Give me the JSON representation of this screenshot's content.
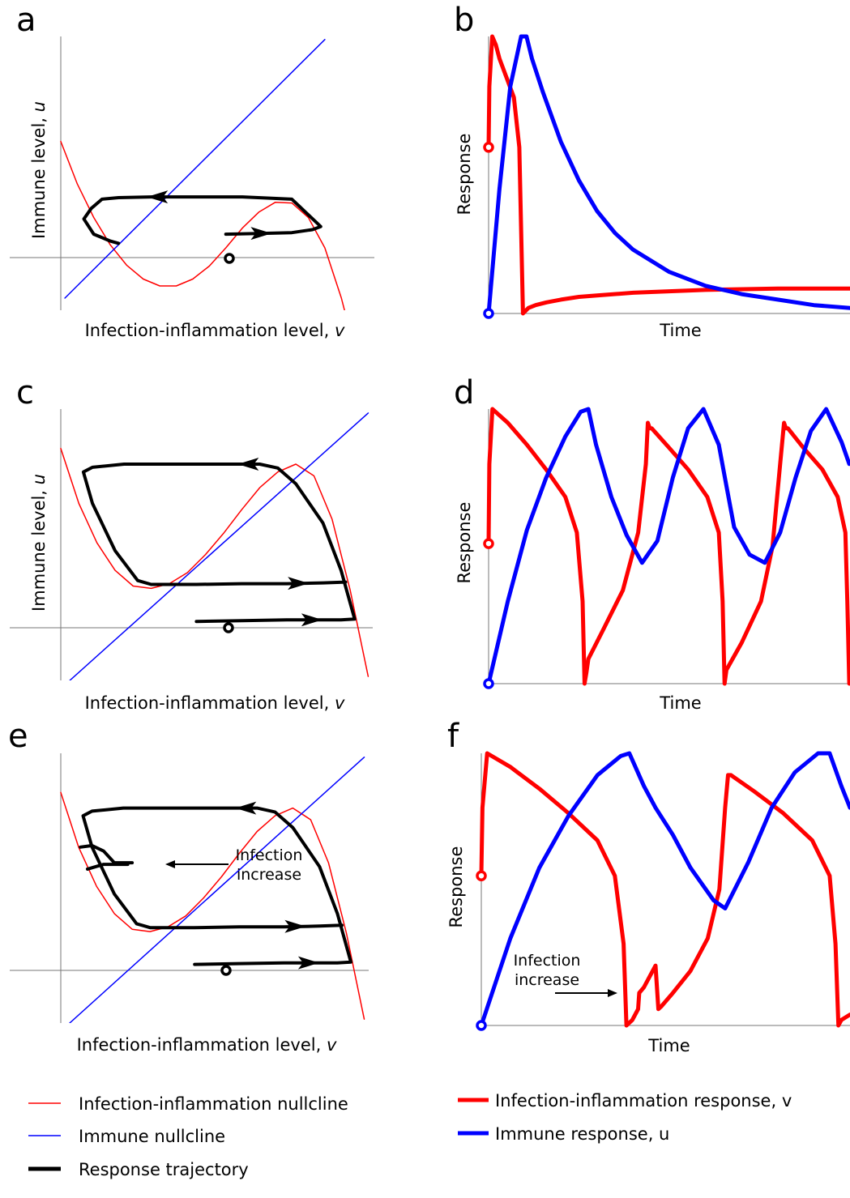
{
  "colors": {
    "infection": "#ff0000",
    "immune": "#0000ff",
    "trajectory": "#000000",
    "axis": "#777777"
  },
  "chart_data": [
    {
      "panel": "a",
      "type": "line",
      "xlabel_prefix": "Infection-inflammation level, ",
      "xlabel_symbol": "v",
      "ylabel_prefix": "Immune level, ",
      "ylabel_symbol": "u",
      "series": [
        {
          "x": [
            -1.6,
            -1.4,
            -1.2,
            -1.0,
            -0.8,
            -0.6,
            -0.4,
            -0.2,
            0,
            0.2,
            0.4,
            0.6,
            0.8,
            1.0,
            1.2,
            1.4,
            1.6,
            1.8,
            2.0
          ],
          "y": [
            1.22,
            0.66,
            0.22,
            -0.14,
            -0.41,
            -0.59,
            -0.68,
            -0.68,
            -0.59,
            -0.42,
            -0.18,
            0.08,
            0.29,
            0.42,
            0.41,
            0.22,
            -0.18,
            -0.84,
            -1.68
          ]
        },
        {
          "x": [
            -1.55,
            1.6
          ],
          "y": [
            -0.84,
            2.56
          ]
        },
        {
          "x": [
            0.4,
            0.8,
            1.2,
            1.45,
            1.55,
            1.2,
            0.6,
            0,
            -0.5,
            -0.9,
            -1.1,
            -1.23,
            -1.32,
            -1.2,
            -1.0,
            -0.9
          ],
          "y": [
            0.0,
            0.01,
            0.02,
            0.06,
            0.1,
            0.46,
            0.49,
            0.49,
            0.49,
            0.48,
            0.46,
            0.34,
            0.2,
            0.0,
            -0.09,
            -0.12
          ]
        }
      ]
    },
    {
      "panel": "b",
      "type": "line",
      "xlabel": "Time",
      "ylabel": "Response",
      "series": [
        {
          "x": [
            0,
            0.02,
            0.1,
            0.2,
            0.3,
            0.5,
            0.7,
            0.85,
            0.95,
            1.1,
            1.3,
            1.6,
            2,
            2.5,
            3,
            4,
            5,
            6,
            8,
            10
          ],
          "y": [
            0.6,
            0.82,
            1.0,
            0.97,
            0.92,
            0.85,
            0.78,
            0.6,
            0.0,
            0.02,
            0.03,
            0.04,
            0.05,
            0.06,
            0.065,
            0.075,
            0.08,
            0.085,
            0.09,
            0.09
          ]
        },
        {
          "x": [
            0,
            0.3,
            0.6,
            0.9,
            1.05,
            1.2,
            1.5,
            2,
            2.5,
            3,
            3.5,
            4,
            5,
            6,
            7,
            8,
            9,
            10
          ],
          "y": [
            0.0,
            0.45,
            0.82,
            1.0,
            1.0,
            0.92,
            0.8,
            0.62,
            0.48,
            0.37,
            0.29,
            0.23,
            0.15,
            0.1,
            0.07,
            0.05,
            0.03,
            0.02
          ]
        }
      ]
    },
    {
      "panel": "c",
      "type": "line",
      "xlabel_prefix": "Infection-inflammation level, ",
      "xlabel_symbol": "v",
      "ylabel_prefix": "Immune level, ",
      "ylabel_symbol": "u",
      "series": [
        {
          "x": [
            -1.2,
            -1.0,
            -0.8,
            -0.6,
            -0.4,
            -0.2,
            0,
            0.2,
            0.4,
            0.6,
            0.8,
            1.0,
            1.2,
            1.4,
            1.6,
            1.8,
            2.0,
            2.2
          ],
          "y": [
            2.2,
            1.5,
            1.0,
            0.65,
            0.45,
            0.42,
            0.48,
            0.62,
            0.85,
            1.12,
            1.42,
            1.7,
            1.9,
            2.0,
            1.85,
            1.3,
            0.4,
            -0.7
          ]
        },
        {
          "x": [
            -1.1,
            2.2
          ],
          "y": [
            -0.75,
            2.65
          ]
        },
        {
          "x": [
            0.3,
            0.8,
            1.3,
            1.6,
            1.9,
            2.05,
            1.9,
            1.7,
            1.4,
            1.2,
            1.0,
            0.6,
            0.0,
            -0.5,
            -0.85,
            -0.95,
            -0.85,
            -0.6,
            -0.35,
            -0.2,
            0.3,
            0.8,
            1.3,
            1.7,
            1.95
          ],
          "y": [
            0.0,
            0.01,
            0.02,
            0.02,
            0.02,
            0.03,
            0.65,
            1.25,
            1.75,
            1.95,
            2.0,
            2.0,
            2.0,
            2.0,
            1.96,
            1.9,
            1.5,
            0.9,
            0.52,
            0.47,
            0.47,
            0.48,
            0.48,
            0.49,
            0.5
          ]
        }
      ]
    },
    {
      "panel": "d",
      "type": "line",
      "xlabel": "Time",
      "ylabel": "Response",
      "series": [
        {
          "x": [
            0,
            0.02,
            0.1,
            0.5,
            1.0,
            1.5,
            2.0,
            2.3,
            2.45,
            2.5,
            2.55,
            2.6,
            3.0,
            3.5,
            3.9,
            4.1,
            4.15,
            4.2,
            4.25,
            4.7,
            5.2,
            5.7,
            6.0,
            6.1,
            6.15,
            6.2,
            6.6,
            7.1,
            7.4,
            7.6,
            7.7,
            7.75,
            7.8,
            8.2,
            8.7,
            9.1,
            9.3,
            9.35,
            9.4,
            9.42
          ],
          "y": [
            0.51,
            0.8,
            1.0,
            0.95,
            0.87,
            0.78,
            0.68,
            0.55,
            0.3,
            0.0,
            0.04,
            0.09,
            0.2,
            0.34,
            0.55,
            0.8,
            0.95,
            0.93,
            0.93,
            0.86,
            0.78,
            0.68,
            0.55,
            0.3,
            0.0,
            0.05,
            0.15,
            0.3,
            0.5,
            0.8,
            0.95,
            0.93,
            0.93,
            0.86,
            0.78,
            0.68,
            0.55,
            0.3,
            0.0,
            0.02
          ]
        },
        {
          "x": [
            0,
            0.5,
            1.0,
            1.5,
            2.0,
            2.4,
            2.6,
            2.8,
            3.2,
            3.6,
            4.0,
            4.4,
            4.8,
            5.2,
            5.6,
            6.0,
            6.2,
            6.4,
            6.8,
            7.2,
            7.6,
            8.0,
            8.4,
            8.8,
            9.2,
            9.4
          ],
          "y": [
            0.0,
            0.3,
            0.56,
            0.75,
            0.9,
            0.99,
            1.0,
            0.87,
            0.68,
            0.54,
            0.44,
            0.52,
            0.75,
            0.93,
            1.0,
            0.87,
            0.72,
            0.57,
            0.47,
            0.44,
            0.55,
            0.75,
            0.92,
            1.0,
            0.88,
            0.8
          ]
        }
      ]
    },
    {
      "panel": "e",
      "type": "line",
      "xlabel_prefix": "Infection-inflammation level, ",
      "xlabel_symbol": "v",
      "annotation": [
        "Infection",
        "increase"
      ],
      "series": [
        {
          "x": [
            -1.2,
            -1.0,
            -0.8,
            -0.6,
            -0.4,
            -0.2,
            0,
            0.2,
            0.4,
            0.6,
            0.8,
            1.0,
            1.2,
            1.4,
            1.6,
            1.8,
            2.0,
            2.2
          ],
          "y": [
            2.2,
            1.5,
            1.0,
            0.65,
            0.45,
            0.42,
            0.48,
            0.62,
            0.85,
            1.12,
            1.42,
            1.7,
            1.9,
            2.0,
            1.85,
            1.3,
            0.4,
            -0.7
          ]
        },
        {
          "x": [
            -1.1,
            2.2
          ],
          "y": [
            -0.75,
            2.65
          ]
        },
        {
          "x": [
            0.3,
            0.8,
            1.3,
            1.6,
            1.9,
            2.05,
            1.9,
            1.7,
            1.4,
            1.2,
            1.0,
            0.6,
            0.0,
            -0.5,
            -0.85,
            -0.95,
            -0.85,
            -0.6,
            -0.35,
            -0.2,
            0.3,
            0.8,
            1.3,
            1.7,
            1.95
          ],
          "y": [
            0.0,
            0.01,
            0.02,
            0.02,
            0.02,
            0.03,
            0.65,
            1.25,
            1.75,
            1.95,
            2.0,
            2.0,
            2.0,
            2.0,
            1.96,
            1.9,
            1.5,
            0.9,
            0.52,
            0.47,
            0.47,
            0.48,
            0.48,
            0.49,
            0.5
          ]
        }
      ]
    },
    {
      "panel": "f",
      "type": "line",
      "xlabel": "Time",
      "ylabel": "Response",
      "annotation": [
        "Infection",
        "increase"
      ],
      "series": [
        {
          "x": [
            0,
            0.02,
            0.1,
            0.5,
            1.0,
            1.5,
            2.0,
            2.3,
            2.45,
            2.5,
            2.6,
            2.7,
            2.72,
            2.8,
            3.0,
            3.05,
            3.1,
            3.3,
            3.6,
            3.9,
            4.1,
            4.2,
            4.25,
            4.3,
            4.7,
            5.2,
            5.7,
            6.0,
            6.1,
            6.15,
            6.2,
            6.35
          ],
          "y": [
            0.55,
            0.8,
            1.0,
            0.95,
            0.87,
            0.78,
            0.68,
            0.55,
            0.3,
            0.0,
            0.02,
            0.06,
            0.12,
            0.14,
            0.22,
            0.06,
            0.07,
            0.12,
            0.2,
            0.32,
            0.5,
            0.8,
            0.92,
            0.92,
            0.86,
            0.78,
            0.68,
            0.55,
            0.3,
            0.0,
            0.02,
            0.04
          ]
        },
        {
          "x": [
            0,
            0.5,
            1.0,
            1.5,
            2.0,
            2.4,
            2.55,
            2.8,
            3.0,
            3.3,
            3.6,
            4.0,
            4.2,
            4.6,
            5.0,
            5.4,
            5.8,
            6.0,
            6.2,
            6.35
          ],
          "y": [
            0.0,
            0.32,
            0.58,
            0.77,
            0.92,
            0.99,
            1.0,
            0.88,
            0.8,
            0.7,
            0.58,
            0.46,
            0.43,
            0.6,
            0.8,
            0.93,
            1.0,
            1.0,
            0.88,
            0.8
          ]
        }
      ]
    }
  ],
  "legend": {
    "left": [
      {
        "label": "Infection-inflammation nullcline",
        "color": "#ff0000",
        "thick": false
      },
      {
        "label": "Immune nullcline",
        "color": "#0000ff",
        "thick": false
      },
      {
        "label": "Response trajectory",
        "color": "#000000",
        "thick": true
      }
    ],
    "right": [
      {
        "label": "Infection-inflammation response, v",
        "color": "#ff0000",
        "thick": true
      },
      {
        "label": "Immune response, u",
        "color": "#0000ff",
        "thick": true
      }
    ]
  }
}
